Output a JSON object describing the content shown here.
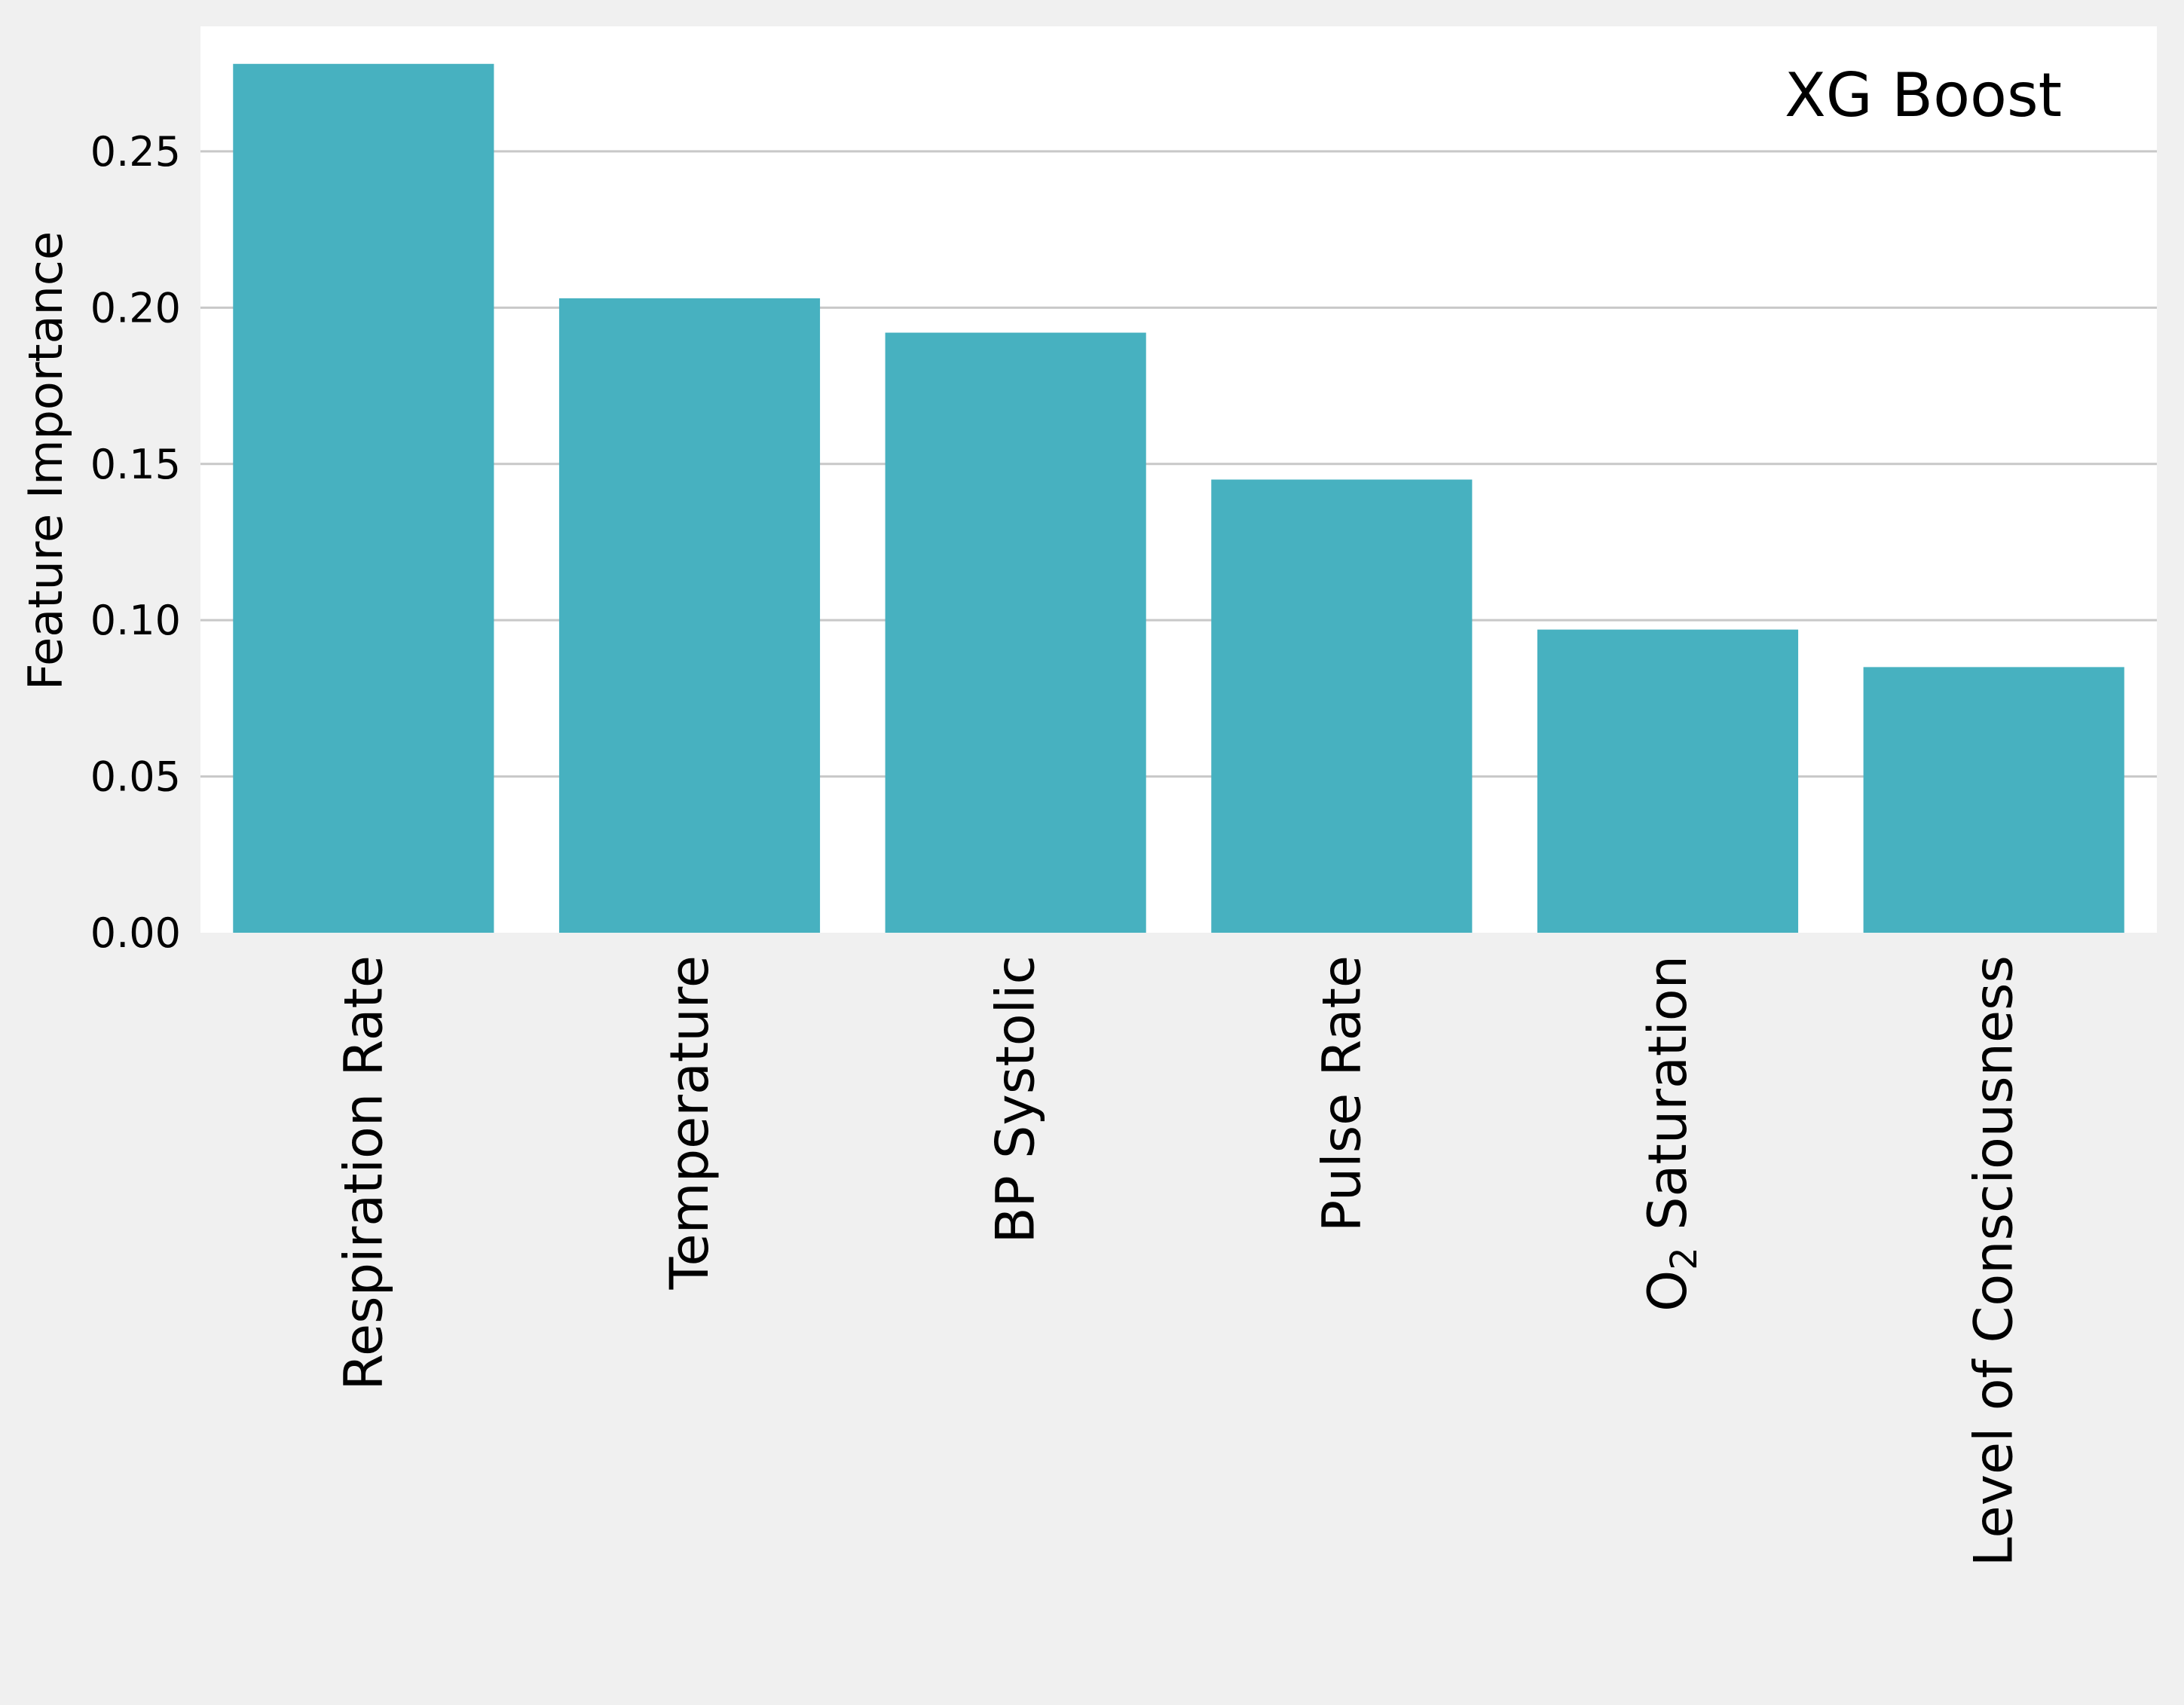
{
  "chart_data": {
    "type": "bar",
    "categories": [
      {
        "main": "Respiration Rate",
        "sub": "",
        "tail": ""
      },
      {
        "main": "Temperature",
        "sub": "",
        "tail": ""
      },
      {
        "main": "BP Systolic",
        "sub": "",
        "tail": ""
      },
      {
        "main": "Pulse Rate",
        "sub": "",
        "tail": ""
      },
      {
        "main": "O",
        "sub": "2",
        "tail": " Saturation"
      },
      {
        "main": "Level of Consciousness",
        "sub": "",
        "tail": ""
      }
    ],
    "values": [
      0.278,
      0.203,
      0.192,
      0.145,
      0.097,
      0.085
    ],
    "title": "",
    "annotation": "XG Boost",
    "xlabel": "",
    "ylabel": "Feature Importance",
    "ylim": [
      0,
      0.29
    ],
    "yticks": [
      0.0,
      0.05,
      0.1,
      0.15,
      0.2,
      0.25
    ],
    "ytick_labels": [
      "0.00",
      "0.05",
      "0.10",
      "0.15",
      "0.20",
      "0.25"
    ],
    "grid": "horizontal",
    "colors": {
      "bar": "#47b1c0",
      "plot_background": "#ffffff",
      "figure_background": "#f0f0f0",
      "grid": "#c8c8c8"
    }
  }
}
